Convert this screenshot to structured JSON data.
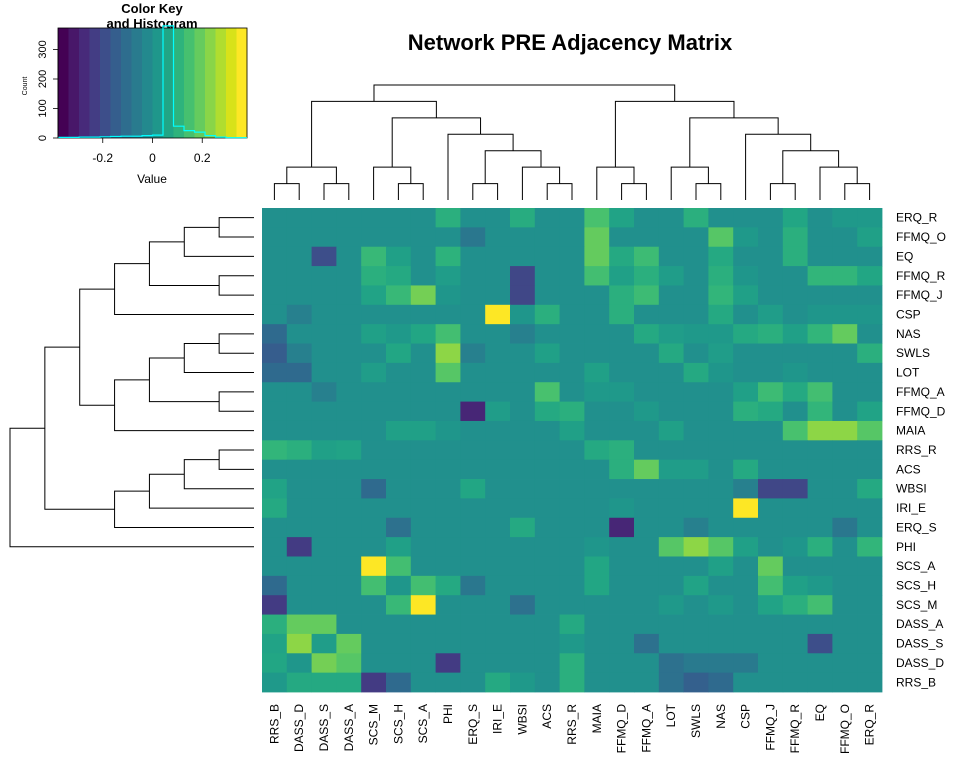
{
  "chart_data": {
    "type": "heatmap",
    "title": "Network PRE Adjacency Matrix",
    "col_labels": [
      "RRS_B",
      "DASS_D",
      "DASS_S",
      "DASS_A",
      "SCS_M",
      "SCS_H",
      "SCS_A",
      "PHI",
      "ERQ_S",
      "IRI_E",
      "WBSI",
      "ACS",
      "RRS_R",
      "MAIA",
      "FFMQ_D",
      "FFMQ_A",
      "LOT",
      "SWLS",
      "NAS",
      "CSP",
      "FFMQ_J",
      "FFMQ_R",
      "EQ",
      "FFMQ_O",
      "ERQ_R"
    ],
    "row_labels": [
      "ERQ_R",
      "FFMQ_O",
      "EQ",
      "FFMQ_R",
      "FFMQ_J",
      "CSP",
      "NAS",
      "SWLS",
      "LOT",
      "FFMQ_A",
      "FFMQ_D",
      "MAIA",
      "RRS_R",
      "ACS",
      "WBSI",
      "IRI_E",
      "ERQ_S",
      "PHI",
      "SCS_A",
      "SCS_H",
      "SCS_M",
      "DASS_A",
      "DASS_S",
      "DASS_D",
      "RRS_B"
    ],
    "values": [
      [
        0,
        0,
        0,
        0,
        0,
        0,
        0,
        0.1,
        0,
        0,
        0.09,
        0,
        0,
        0.16,
        0.06,
        0,
        0,
        0.1,
        0,
        0,
        0,
        0.07,
        0,
        0.03,
        0.03
      ],
      [
        0,
        0,
        0,
        0,
        0,
        0,
        0,
        0,
        -0.08,
        0,
        0,
        0,
        0,
        0.2,
        0,
        0,
        0,
        0,
        0.18,
        0.03,
        0,
        0.1,
        0,
        0,
        0.05
      ],
      [
        0,
        0,
        -0.2,
        0,
        0.13,
        0.05,
        0,
        0.11,
        0,
        0,
        0,
        0,
        0,
        0.2,
        0.08,
        0.14,
        0,
        0,
        0.08,
        0,
        0,
        0.1,
        0,
        0,
        0
      ],
      [
        0,
        0,
        0,
        0,
        0.1,
        0.08,
        0,
        0.04,
        0,
        0,
        -0.22,
        0,
        0,
        0.15,
        0.05,
        0.1,
        0.04,
        0,
        0.1,
        0.02,
        0,
        0,
        0.12,
        0.12,
        0.07
      ],
      [
        0,
        0,
        0,
        0,
        0.06,
        0.13,
        0.22,
        0.02,
        0,
        0,
        -0.22,
        0,
        0,
        0,
        0.1,
        0.14,
        0,
        0,
        0.12,
        0.05,
        0,
        0,
        0,
        0,
        0
      ],
      [
        0,
        -0.05,
        0,
        0,
        0,
        0,
        0,
        0,
        0,
        0.4,
        0.02,
        0.1,
        0,
        0,
        0.1,
        0,
        0,
        0,
        0.08,
        0,
        0.04,
        0,
        0.02,
        0.02,
        0.02
      ],
      [
        -0.12,
        0,
        0,
        0,
        0.05,
        0.03,
        0.07,
        0.15,
        0,
        0,
        -0.05,
        0,
        0,
        0,
        0,
        0.08,
        0.04,
        0.03,
        0.03,
        0.08,
        0.1,
        0.05,
        0.12,
        0.2,
        0
      ],
      [
        -0.16,
        -0.05,
        0,
        0,
        0,
        0.07,
        0,
        0.25,
        -0.05,
        0,
        0,
        0.05,
        0,
        0,
        0,
        0,
        0.08,
        0,
        0.04,
        0,
        0,
        0,
        0,
        0,
        0.1
      ],
      [
        -0.12,
        -0.12,
        0,
        0,
        0.04,
        0,
        0,
        0.18,
        0,
        0,
        0,
        0,
        0,
        0.05,
        0,
        0,
        0,
        0.08,
        0.02,
        0,
        0,
        0.02,
        0,
        0,
        0
      ],
      [
        0,
        0,
        -0.05,
        0,
        0,
        0,
        0,
        0,
        0,
        0,
        0,
        0.16,
        0,
        0.03,
        0.03,
        0,
        0,
        0,
        0,
        0.05,
        0.14,
        0.08,
        0.15,
        0,
        0
      ],
      [
        0,
        0,
        0,
        0,
        0,
        0,
        0,
        0,
        -0.3,
        0.04,
        0,
        0.08,
        0.1,
        0,
        0,
        0.03,
        0,
        0,
        0,
        0.1,
        0.08,
        0,
        0.12,
        0,
        0.06
      ],
      [
        0,
        0,
        0,
        0,
        0,
        0.05,
        0.05,
        0.02,
        0,
        0,
        0,
        0,
        0.05,
        0,
        0,
        0,
        0.05,
        0,
        0,
        0,
        0,
        0.16,
        0.25,
        0.25,
        0.18
      ],
      [
        0.12,
        0.1,
        0.05,
        0.06,
        0,
        0,
        0,
        0,
        0,
        0,
        0,
        0,
        0,
        0.08,
        0.1,
        0,
        0,
        0,
        0,
        0,
        0,
        0,
        0,
        0,
        0
      ],
      [
        0,
        0,
        0,
        0,
        0,
        0,
        0,
        0,
        0,
        0,
        0,
        0,
        0,
        0,
        0.1,
        0.2,
        0.04,
        0.04,
        0,
        0.08,
        0,
        0,
        0,
        0,
        0
      ],
      [
        0.06,
        0,
        0,
        0,
        -0.12,
        0,
        0,
        0,
        0.07,
        0,
        0,
        0,
        0,
        0,
        0,
        0,
        0,
        0,
        0,
        -0.05,
        -0.22,
        -0.22,
        0,
        0,
        0.08
      ],
      [
        0.08,
        0,
        0,
        0,
        0,
        0,
        0,
        0,
        0,
        0,
        0,
        0,
        0,
        0,
        0.02,
        0,
        0,
        0,
        0,
        0.4,
        0,
        0,
        0,
        0,
        0
      ],
      [
        0,
        0,
        0,
        0,
        0,
        -0.1,
        0,
        0,
        0,
        0,
        0.08,
        0,
        0,
        0,
        -0.3,
        0,
        0,
        -0.05,
        0,
        0,
        0,
        0,
        0,
        -0.08,
        0
      ],
      [
        0,
        -0.25,
        0,
        0,
        0,
        0.05,
        0,
        0,
        0,
        0,
        0,
        0,
        0,
        0.02,
        0,
        0,
        0.18,
        0.25,
        0.18,
        0.05,
        0,
        0.02,
        0.1,
        0,
        0.12
      ],
      [
        0,
        0,
        0,
        0,
        0.4,
        0.15,
        0,
        0,
        0,
        0,
        0,
        0,
        0,
        0.07,
        0,
        0,
        0,
        0,
        0.05,
        0,
        0.2,
        0,
        0,
        0,
        0
      ],
      [
        -0.12,
        0,
        0,
        0,
        0.15,
        0.02,
        0.15,
        0.08,
        -0.08,
        0,
        0,
        0,
        0,
        0.07,
        0,
        0,
        0,
        0.06,
        0,
        0,
        0.15,
        0.05,
        0.03,
        0,
        0
      ],
      [
        -0.25,
        0,
        0,
        0,
        0,
        0.13,
        0.4,
        0,
        0,
        0,
        -0.1,
        0,
        0,
        0,
        0,
        0,
        0.03,
        0,
        0.03,
        0,
        0.06,
        0.1,
        0.15,
        0,
        0
      ],
      [
        0.1,
        0.2,
        0.2,
        0,
        0,
        0,
        0,
        0,
        0,
        0,
        0,
        0,
        0.08,
        0,
        0,
        0,
        0,
        0,
        0,
        0,
        0,
        0,
        0,
        0,
        0
      ],
      [
        0.06,
        0.25,
        0.04,
        0.2,
        0,
        0,
        0,
        0,
        0,
        0,
        0,
        0,
        0.03,
        0,
        0,
        -0.1,
        0,
        0,
        0,
        0,
        0,
        0,
        -0.2,
        0,
        0
      ],
      [
        0.07,
        0.02,
        0.22,
        0.18,
        0,
        0,
        0,
        -0.25,
        0,
        0,
        0,
        0,
        0.1,
        0,
        0,
        0,
        -0.1,
        -0.07,
        -0.07,
        -0.07,
        0,
        0,
        0,
        0,
        0
      ],
      [
        0.03,
        0.08,
        0.08,
        0.08,
        -0.25,
        -0.12,
        0,
        0,
        0,
        0.08,
        0.03,
        0,
        0.1,
        0,
        0,
        0,
        -0.1,
        -0.15,
        -0.12,
        0,
        0,
        0,
        0,
        0,
        0
      ]
    ],
    "col_tree": [
      [
        [
          [
            "RRS_B",
            "DASS_D"
          ],
          [
            "DASS_S",
            "DASS_A"
          ]
        ],
        [
          [
            "SCS_M",
            [
              "SCS_H",
              "SCS_A"
            ]
          ],
          [
            "PHI",
            [
              [
                "ERQ_S",
                "IRI_E"
              ],
              [
                "WBSI",
                [
                  "ACS",
                  "RRS_R"
                ]
              ]
            ]
          ]
        ]
      ],
      [
        [
          "MAIA",
          [
            "FFMQ_D",
            "FFMQ_A"
          ]
        ],
        [
          [
            "LOT",
            [
              "SWLS",
              "NAS"
            ]
          ],
          [
            "CSP",
            [
              [
                "FFMQ_J",
                "FFMQ_R"
              ],
              [
                "EQ",
                [
                  "FFMQ_O",
                  "ERQ_R"
                ]
              ]
            ]
          ]
        ]
      ]
    ],
    "col_heights": [
      [
        1.0,
        0.58
      ],
      [
        0.44,
        0.03
      ]
    ],
    "row_tree": [
      [
        [
          [
            [
              [
                [
                  "ERQ_R",
                  "FFMQ_O"
                ],
                "EQ"
              ],
              [
                "FFMQ_R",
                "FFMQ_J"
              ]
            ],
            "CSP"
          ],
          [
            [
              [
                [
                  "NAS",
                  "SWLS"
                ],
                "LOT"
              ],
              [
                "FFMQ_A",
                "FFMQ_D"
              ]
            ],
            "MAIA"
          ]
        ],
        [
          [
            [
              [
                "RRS_R",
                "ACS"
              ],
              "WBSI"
            ],
            "IRI_E"
          ],
          "ERQ_S"
        ]
      ],
      "PHI"
    ],
    "color_key": {
      "title": "Color Key",
      "subtitle": "and Histogram",
      "xlabel": "Value",
      "ylabel": "Count",
      "xticks": [
        -0.2,
        0,
        0.2
      ],
      "yticks": [
        0,
        100,
        200,
        300
      ],
      "range": [
        -0.38,
        0.38
      ],
      "colors": [
        "#440154",
        "#481769",
        "#472a7a",
        "#433d84",
        "#3d4e8a",
        "#355e8d",
        "#2e6d8e",
        "#297b8e",
        "#23898e",
        "#1f978b",
        "#21a585",
        "#2eb37c",
        "#46c06f",
        "#65cb5e",
        "#89d548",
        "#b0dd2f",
        "#d8e219",
        "#fde725"
      ],
      "hist_color": "#00ffff"
    }
  }
}
